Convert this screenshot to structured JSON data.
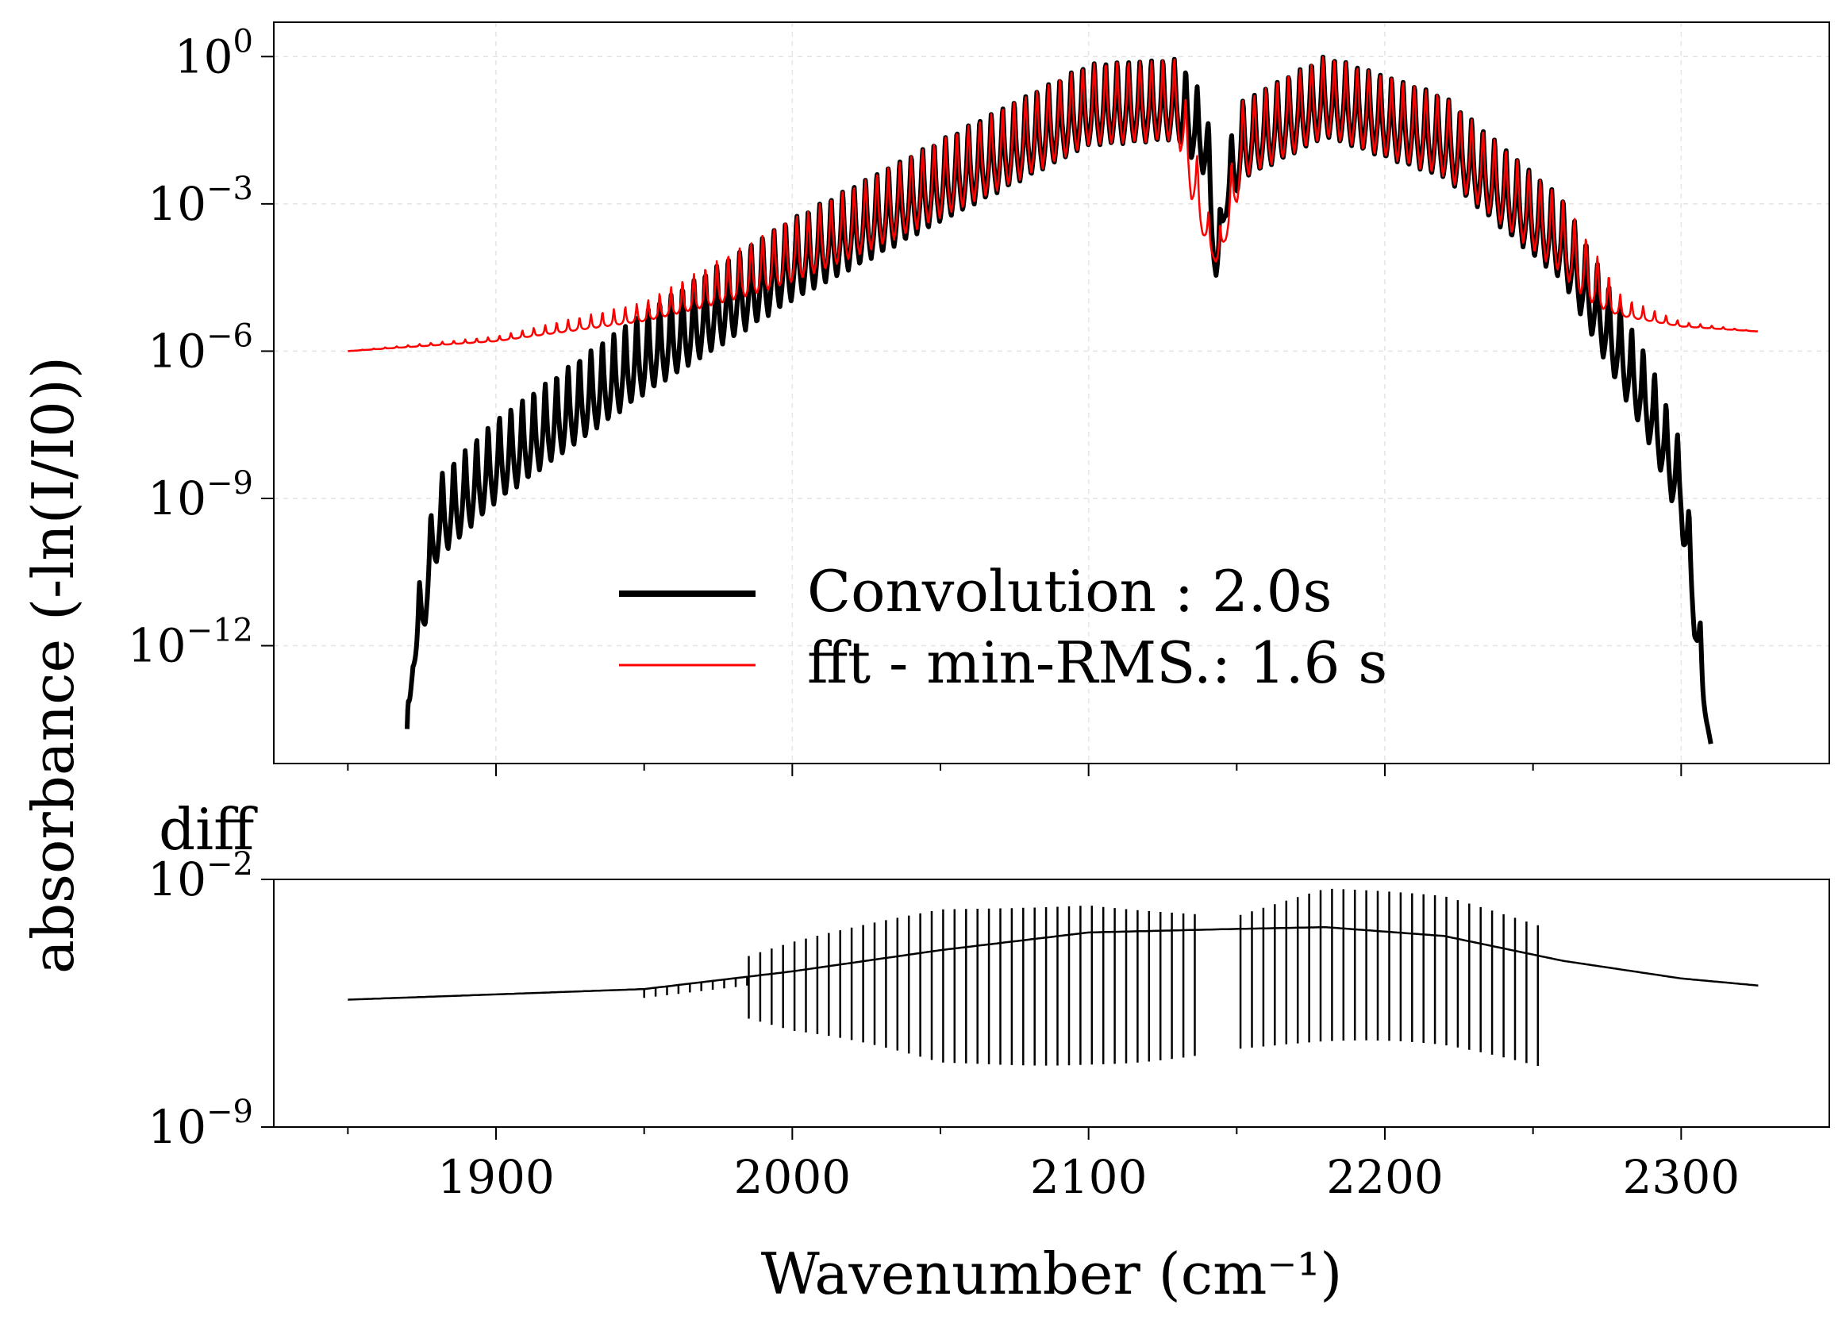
{
  "chart_data": [
    {
      "type": "line",
      "panel": "top",
      "title": "",
      "xlabel": "",
      "ylabel": "absorbance (-ln(I/I0))",
      "yscale": "log",
      "xlim": [
        1825,
        2350
      ],
      "ylim_exp": [
        -14.4,
        0.7
      ],
      "x_ticks": [
        1850,
        1900,
        1950,
        2000,
        2050,
        2100,
        2150,
        2200,
        2250,
        2300
      ],
      "x_tick_labels_shown": false,
      "y_ticks": [
        {
          "exp": 0,
          "label": "10",
          "sup": "0"
        },
        {
          "exp": -3,
          "label": "10",
          "sup": "−3"
        },
        {
          "exp": -6,
          "label": "10",
          "sup": "−6"
        },
        {
          "exp": -9,
          "label": "10",
          "sup": "−9"
        },
        {
          "exp": -12,
          "label": "10",
          "sup": "−12"
        }
      ],
      "grid": true,
      "legend": {
        "position": "lower-center",
        "entries": [
          {
            "label": "Convolution : 2.0s",
            "color": "#000000",
            "width": 8
          },
          {
            "label": "fft - min-RMS.: 1.6 s",
            "color": "#ff0000",
            "width": 3
          }
        ]
      },
      "series": [
        {
          "name": "Convolution : 2.0s",
          "color": "#000000",
          "note": "rovibrational band, peaks with spacing ~3.86 cm-1; log10 values",
          "x": [
            1870,
            1872,
            1880,
            1900,
            1950,
            2000,
            2050,
            2100,
            2130,
            2140,
            2143,
            2146,
            2152,
            2180,
            2220,
            2260,
            2290,
            2300,
            2305,
            2310
          ],
          "peak_log10": [
            -13.5,
            -11.5,
            -8.6,
            -7.4,
            -5.2,
            -3.3,
            -1.7,
            -0.15,
            -0.05,
            -0.9,
            -4.0,
            -2.0,
            -0.9,
            0.02,
            -0.8,
            -2.9,
            -6.3,
            -7.9,
            -10.5,
            -14.0
          ],
          "envelope_log10": [
            -14.0,
            -12.5,
            -11.8,
            -10.8,
            -8.5,
            -6.5,
            -4.8,
            -3.3,
            -2.8,
            -3.2,
            -4.5,
            -3.5,
            -3.1,
            -3.0,
            -4.1,
            -7.0,
            -9.6,
            -11.2,
            -12.5,
            -14.0
          ]
        },
        {
          "name": "fft - min-RMS.: 1.6 s",
          "color": "#ff0000",
          "note": "same band sitting on a Lorentzian-like baseline; log10 values",
          "x": [
            1850,
            1900,
            1950,
            2000,
            2050,
            2100,
            2130,
            2143,
            2152,
            2180,
            2220,
            2260,
            2280,
            2300,
            2326
          ],
          "peak_log10": [
            -6.0,
            -5.7,
            -5.0,
            -3.3,
            -1.7,
            -0.15,
            -0.05,
            -3.9,
            -0.9,
            0.02,
            -0.8,
            -2.9,
            -4.9,
            -5.4,
            -5.6
          ],
          "envelope_log10": [
            -6.0,
            -5.8,
            -5.4,
            -4.8,
            -4.0,
            -3.2,
            -2.8,
            -4.2,
            -3.1,
            -2.9,
            -3.6,
            -5.0,
            -5.3,
            -5.5,
            -5.6
          ]
        }
      ]
    },
    {
      "type": "line",
      "panel": "bottom",
      "title": "diff",
      "xlabel": "Wavenumber (cm⁻¹)",
      "ylabel": "",
      "yscale": "log",
      "xlim": [
        1825,
        2350
      ],
      "ylim_exp": [
        -9,
        -2
      ],
      "x_ticks": [
        1850,
        1900,
        1950,
        2000,
        2050,
        2100,
        2150,
        2200,
        2250,
        2300
      ],
      "x_tick_labels": [
        "1900",
        "2000",
        "2100",
        "2200",
        "2300"
      ],
      "x_tick_labels_at": [
        1900,
        2000,
        2100,
        2200,
        2300
      ],
      "y_ticks": [
        {
          "exp": -2,
          "label": "10",
          "sup": "−2"
        },
        {
          "exp": -9,
          "label": "10",
          "sup": "−9"
        }
      ],
      "series": [
        {
          "name": "",
          "color": "#000000",
          "note": "baseline difference with downward spikes between 1985 and 2255 cm-1; log10 values",
          "x": [
            1850,
            1950,
            2000,
            2050,
            2100,
            2150,
            2180,
            2220,
            2260,
            2300,
            2326
          ],
          "baseline_log10": [
            -5.4,
            -5.1,
            -4.6,
            -4.0,
            -3.5,
            -3.4,
            -3.35,
            -3.6,
            -4.3,
            -4.8,
            -5.0
          ],
          "spike_top_log10": [
            -5.4,
            -5.1,
            -3.9,
            -2.9,
            -2.6,
            -3.0,
            -2.35,
            -2.6,
            -3.5,
            -4.8,
            -5.0
          ],
          "spike_bottom_log10": [
            -5.4,
            -5.1,
            -6.6,
            -7.3,
            -6.9,
            -6.7,
            -6.8,
            -7.0,
            -7.4,
            -4.8,
            -5.0
          ]
        }
      ]
    }
  ]
}
